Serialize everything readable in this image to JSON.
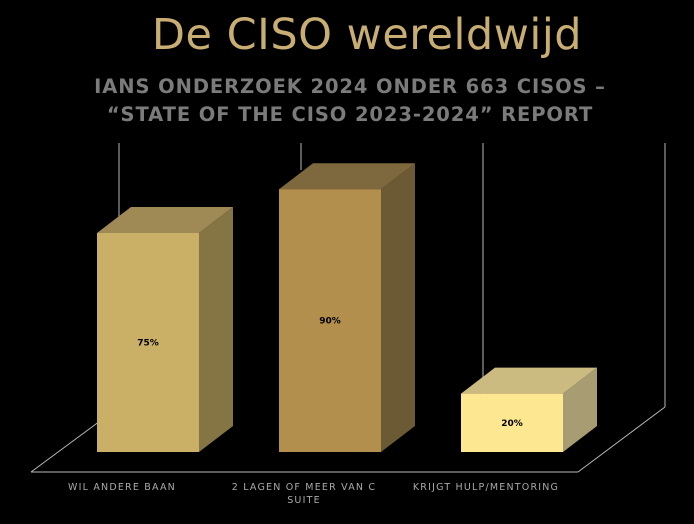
{
  "title": "De CISO wereldwijd",
  "subtitle": "IANS ONDERZOEK 2024 ONDER 663 CISOS – “STATE OF THE CISO 2023-2024” REPORT",
  "chart_data": {
    "type": "bar",
    "style": "3d-column",
    "categories": [
      "WIL ANDERE BAAN",
      "2 LAGEN OF MEER VAN C SUITE",
      "KRIJGT HULP/MENTORING"
    ],
    "category_lines": [
      [
        "WIL ANDERE BAAN"
      ],
      [
        "2 LAGEN OF MEER VAN C",
        "SUITE"
      ],
      [
        "KRIJGT HULP/MENTORING"
      ]
    ],
    "values": [
      75,
      90,
      20
    ],
    "data_labels": [
      "75%",
      "90%",
      "20%"
    ],
    "ylim": [
      0,
      100
    ],
    "grid": false,
    "colors": {
      "bars": [
        {
          "front": "#cab067",
          "top": "#9f8a55",
          "side": "#857545"
        },
        {
          "front": "#b38f4d",
          "top": "#7e693f",
          "side": "#6c5a34"
        },
        {
          "front": "#fde790",
          "top": "#cbbb80",
          "side": "#a89d72"
        }
      ],
      "axis_lines": "#b8b8b8"
    }
  }
}
